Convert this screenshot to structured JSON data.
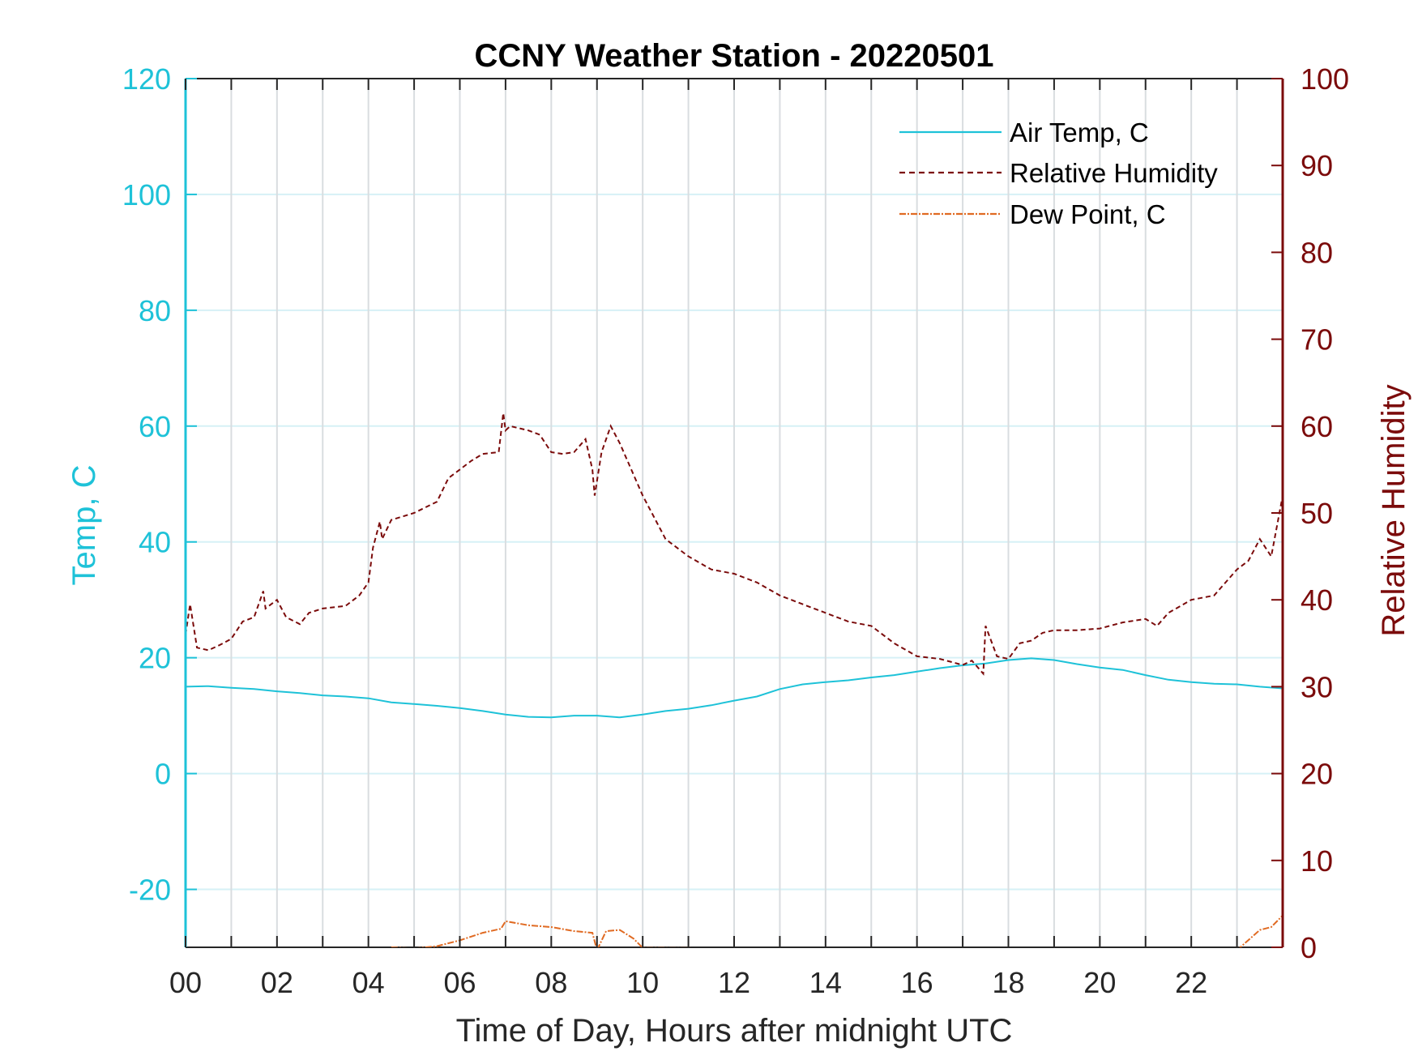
{
  "colors": {
    "temp": "#1ec2d8",
    "humidity": "#7b0b0b",
    "dewpoint": "#e06a22",
    "grid": "#d9dde0",
    "hgrid": "#d6f1f6",
    "axis": "#262626"
  },
  "chart_data": {
    "type": "line",
    "title": "CCNY Weather Station - 20220501",
    "xlabel": "Time of Day, Hours after midnight UTC",
    "ylabel_left": "Temp, C",
    "ylabel_right": "Relative Humidity",
    "xlim": [
      0,
      24
    ],
    "ylim_left": [
      -30,
      120
    ],
    "ylim_right": [
      0,
      100
    ],
    "x_ticks": [
      "00",
      "02",
      "04",
      "06",
      "08",
      "10",
      "12",
      "14",
      "16",
      "18",
      "20",
      "22"
    ],
    "x_tick_values": [
      0,
      2,
      4,
      6,
      8,
      10,
      12,
      14,
      16,
      18,
      20,
      22
    ],
    "y_ticks_left": [
      "120",
      "100",
      "80",
      "60",
      "40",
      "20",
      "0",
      "-20"
    ],
    "y_tick_values_left": [
      120,
      100,
      80,
      60,
      40,
      20,
      0,
      -20
    ],
    "y_ticks_right": [
      "100",
      "90",
      "80",
      "70",
      "60",
      "50",
      "40",
      "30",
      "20",
      "10",
      "0"
    ],
    "y_tick_values_right": [
      100,
      90,
      80,
      70,
      60,
      50,
      40,
      30,
      20,
      10,
      0
    ],
    "legend": [
      "Air Temp, C",
      "Relative Humidity",
      "Dew Point, C"
    ],
    "legend_position": "top-right",
    "series": [
      {
        "name": "Air Temp, C",
        "axis": "left",
        "style": "solid",
        "x": [
          0,
          0.5,
          1,
          1.5,
          2,
          2.5,
          3,
          3.5,
          4,
          4.5,
          5,
          5.5,
          6,
          6.5,
          7,
          7.5,
          8,
          8.5,
          9,
          9.5,
          10,
          10.5,
          11,
          11.5,
          12,
          12.5,
          13,
          13.5,
          14,
          14.5,
          15,
          15.5,
          16,
          16.5,
          17,
          17.5,
          18,
          18.5,
          19,
          19.5,
          20,
          20.5,
          21,
          21.5,
          22,
          22.5,
          23,
          23.5,
          24
        ],
        "values": [
          15,
          15.1,
          14.8,
          14.6,
          14.2,
          13.9,
          13.5,
          13.3,
          13.0,
          12.3,
          12.0,
          11.7,
          11.3,
          10.8,
          10.2,
          9.8,
          9.7,
          10.0,
          10.0,
          9.7,
          10.2,
          10.8,
          11.2,
          11.8,
          12.6,
          13.3,
          14.6,
          15.4,
          15.8,
          16.1,
          16.6,
          17.0,
          17.6,
          18.2,
          18.7,
          19.0,
          19.6,
          19.9,
          19.6,
          18.9,
          18.3,
          17.9,
          17.0,
          16.2,
          15.8,
          15.5,
          15.4,
          15.0,
          14.7
        ]
      },
      {
        "name": "Relative Humidity",
        "axis": "right",
        "style": "dashed",
        "x": [
          0,
          0.1,
          0.25,
          0.5,
          0.75,
          1,
          1.25,
          1.5,
          1.7,
          1.75,
          2,
          2.2,
          2.5,
          2.7,
          3,
          3.5,
          3.8,
          4,
          4.1,
          4.25,
          4.3,
          4.5,
          5,
          5.5,
          5.75,
          6,
          6.25,
          6.5,
          6.85,
          6.95,
          7.0,
          7.1,
          7.5,
          7.75,
          8,
          8.25,
          8.5,
          8.75,
          8.9,
          8.95,
          9.1,
          9.3,
          9.5,
          9.75,
          10,
          10.25,
          10.5,
          11,
          11.5,
          12,
          12.5,
          13,
          13.5,
          14,
          14.5,
          15,
          15.5,
          16,
          16.5,
          17,
          17.2,
          17.45,
          17.5,
          17.75,
          18,
          18.25,
          18.5,
          18.75,
          19,
          19.5,
          20,
          20.5,
          21,
          21.25,
          21.5,
          22,
          22.5,
          23,
          23.25,
          23.5,
          23.75,
          24
        ],
        "values": [
          36,
          39.5,
          34.5,
          34.2,
          34.8,
          35.5,
          37.5,
          38,
          41,
          39,
          40,
          38,
          37.2,
          38.5,
          39,
          39.3,
          40.5,
          42,
          46,
          49,
          47,
          49.2,
          50,
          51.3,
          54,
          55,
          56,
          56.8,
          57,
          61.5,
          59.5,
          60,
          59.5,
          59,
          57,
          56.8,
          57,
          58.5,
          55,
          52,
          57,
          60,
          58,
          55,
          52,
          49.5,
          47,
          45,
          43.5,
          43,
          42,
          40.5,
          39.5,
          38.5,
          37.5,
          37,
          35,
          33.5,
          33.2,
          32.5,
          33,
          31.5,
          37,
          33.5,
          33.2,
          35,
          35.3,
          36.2,
          36.5,
          36.5,
          36.7,
          37.4,
          37.8,
          37,
          38.5,
          40,
          40.5,
          43.5,
          44.5,
          47,
          45,
          52
        ]
      },
      {
        "name": "Dew Point, C",
        "axis": "left",
        "style": "dashdot",
        "x": [
          4.5,
          5.0,
          5.5,
          6.0,
          6.5,
          6.9,
          7.0,
          7.5,
          8.0,
          8.5,
          8.9,
          9.0,
          9.2,
          9.5,
          9.8,
          10.0,
          23.0,
          23.5,
          23.75,
          24
        ],
        "values": [
          -30,
          -30.2,
          -29.8,
          -28.8,
          -27.5,
          -26.8,
          -25.5,
          -26.2,
          -26.5,
          -27.2,
          -27.5,
          -30.5,
          -27.2,
          -27.0,
          -28.5,
          -30.1,
          -30.5,
          -27.0,
          -26.5,
          -24.5
        ]
      }
    ]
  }
}
